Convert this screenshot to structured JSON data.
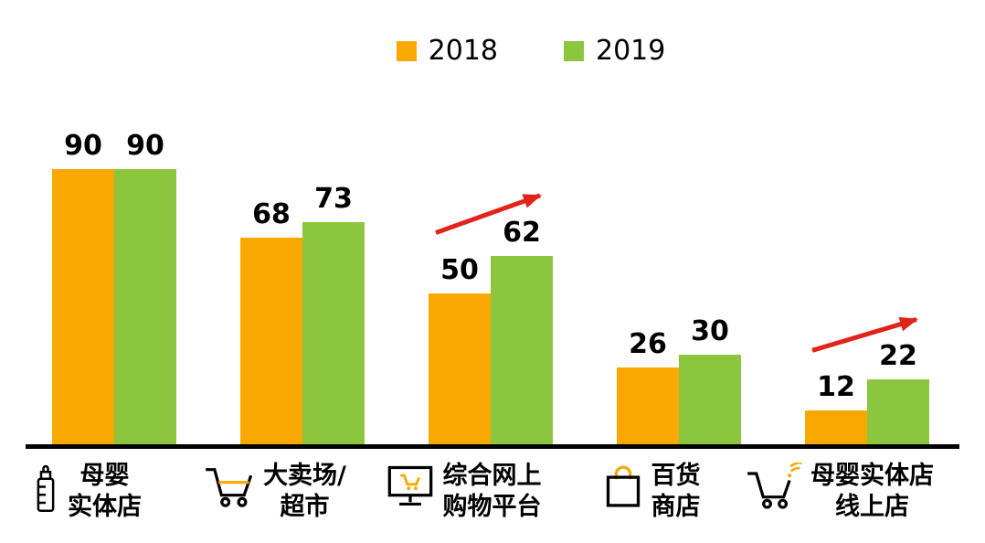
{
  "legend": {
    "items": [
      {
        "label": "2018",
        "color": "#F9A800"
      },
      {
        "label": "2019",
        "color": "#8CC63F"
      }
    ]
  },
  "chart_data": {
    "type": "bar",
    "title": "",
    "xlabel": "",
    "ylabel": "",
    "ylim": [
      0,
      95
    ],
    "grid": false,
    "legend_position": "top-center",
    "categories": [
      "母婴实体店",
      "大卖场/超市",
      "综合网上购物平台",
      "百货商店",
      "母婴实体店线上店"
    ],
    "category_label_lines": [
      [
        "母婴",
        "实体店"
      ],
      [
        "大卖场/",
        "超市"
      ],
      [
        "综合网上",
        "购物平台"
      ],
      [
        "百货",
        "商店"
      ],
      [
        "母婴实体店",
        "线上店"
      ]
    ],
    "category_icons": [
      "baby-bottle-icon",
      "shopping-cart-icon",
      "online-shopping-monitor-icon",
      "shopping-bag-icon",
      "online-cart-wifi-icon"
    ],
    "series": [
      {
        "name": "2018",
        "color": "#F9A800",
        "values": [
          90,
          68,
          50,
          26,
          12
        ]
      },
      {
        "name": "2019",
        "color": "#8CC63F",
        "values": [
          90,
          73,
          62,
          30,
          22
        ]
      }
    ],
    "annotations": [
      {
        "type": "arrow",
        "category_index": 2,
        "direction": "up-right",
        "color": "#E2231A"
      },
      {
        "type": "arrow",
        "category_index": 4,
        "direction": "up-right",
        "color": "#E2231A"
      }
    ]
  },
  "colors": {
    "bar_2018": "#F9A800",
    "bar_2019": "#8CC63F",
    "arrow": "#E2231A",
    "axis": "#000000",
    "background": "#FFFFFF",
    "text": "#000000"
  }
}
